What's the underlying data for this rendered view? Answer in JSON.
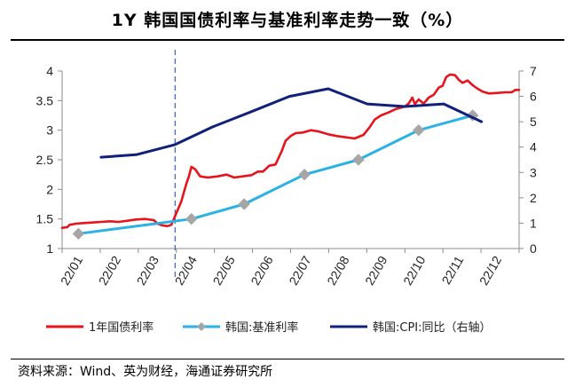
{
  "title": "1Y 韩国国债利率与基准利率走势一致（%）",
  "source": "资料来源：Wind、英为财经，海通证券研究所",
  "chart_data": {
    "type": "line",
    "title": "1Y 韩国国债利率与基准利率走势一致（%）",
    "x_ticks": [
      "22/01",
      "22/02",
      "22/03",
      "22/04",
      "22/05",
      "22/06",
      "22/07",
      "22/08",
      "22/09",
      "22/10",
      "22/11",
      "22/12"
    ],
    "x_range": [
      "2022-01-01",
      "2022-12-31"
    ],
    "y_left": {
      "min": 1,
      "max": 4,
      "ticks": [
        "1",
        "1.5",
        "2",
        "2.5",
        "3",
        "3.5",
        "4"
      ]
    },
    "y_right": {
      "min": 0,
      "max": 7,
      "ticks": [
        "0",
        "1",
        "2",
        "3",
        "4",
        "5",
        "6",
        "7"
      ]
    },
    "marker_line_date": "2022-04-01",
    "series": [
      {
        "name": "1年国债利率",
        "axis": "left",
        "color": "#e8131b",
        "points": [
          [
            "2022-01-01",
            1.35
          ],
          [
            "2022-01-05",
            1.36
          ],
          [
            "2022-01-07",
            1.4
          ],
          [
            "2022-01-12",
            1.42
          ],
          [
            "2022-01-18",
            1.43
          ],
          [
            "2022-01-25",
            1.44
          ],
          [
            "2022-02-01",
            1.45
          ],
          [
            "2022-02-08",
            1.46
          ],
          [
            "2022-02-15",
            1.45
          ],
          [
            "2022-02-22",
            1.47
          ],
          [
            "2022-03-01",
            1.49
          ],
          [
            "2022-03-08",
            1.5
          ],
          [
            "2022-03-15",
            1.48
          ],
          [
            "2022-03-18",
            1.42
          ],
          [
            "2022-03-22",
            1.39
          ],
          [
            "2022-03-26",
            1.38
          ],
          [
            "2022-03-29",
            1.4
          ],
          [
            "2022-03-31",
            1.5
          ],
          [
            "2022-04-03",
            1.65
          ],
          [
            "2022-04-06",
            1.8
          ],
          [
            "2022-04-08",
            1.95
          ],
          [
            "2022-04-10",
            2.1
          ],
          [
            "2022-04-12",
            2.22
          ],
          [
            "2022-04-14",
            2.38
          ],
          [
            "2022-04-17",
            2.34
          ],
          [
            "2022-04-21",
            2.22
          ],
          [
            "2022-04-27",
            2.2
          ],
          [
            "2022-05-05",
            2.22
          ],
          [
            "2022-05-12",
            2.25
          ],
          [
            "2022-05-18",
            2.2
          ],
          [
            "2022-05-25",
            2.22
          ],
          [
            "2022-06-01",
            2.24
          ],
          [
            "2022-06-06",
            2.3
          ],
          [
            "2022-06-10",
            2.3
          ],
          [
            "2022-06-15",
            2.4
          ],
          [
            "2022-06-20",
            2.42
          ],
          [
            "2022-06-25",
            2.65
          ],
          [
            "2022-06-28",
            2.82
          ],
          [
            "2022-07-02",
            2.9
          ],
          [
            "2022-07-06",
            2.95
          ],
          [
            "2022-07-12",
            2.96
          ],
          [
            "2022-07-18",
            3.0
          ],
          [
            "2022-07-24",
            2.98
          ],
          [
            "2022-08-01",
            2.93
          ],
          [
            "2022-08-08",
            2.9
          ],
          [
            "2022-08-15",
            2.88
          ],
          [
            "2022-08-22",
            2.86
          ],
          [
            "2022-08-29",
            2.92
          ],
          [
            "2022-09-03",
            3.05
          ],
          [
            "2022-09-07",
            3.18
          ],
          [
            "2022-09-12",
            3.25
          ],
          [
            "2022-09-18",
            3.3
          ],
          [
            "2022-09-24",
            3.36
          ],
          [
            "2022-09-28",
            3.38
          ],
          [
            "2022-10-01",
            3.4
          ],
          [
            "2022-10-04",
            3.45
          ],
          [
            "2022-10-07",
            3.55
          ],
          [
            "2022-10-09",
            3.44
          ],
          [
            "2022-10-12",
            3.52
          ],
          [
            "2022-10-16",
            3.45
          ],
          [
            "2022-10-20",
            3.55
          ],
          [
            "2022-10-24",
            3.6
          ],
          [
            "2022-10-28",
            3.72
          ],
          [
            "2022-10-31",
            3.75
          ],
          [
            "2022-11-03",
            3.9
          ],
          [
            "2022-11-06",
            3.94
          ],
          [
            "2022-11-10",
            3.93
          ],
          [
            "2022-11-13",
            3.85
          ],
          [
            "2022-11-16",
            3.8
          ],
          [
            "2022-11-20",
            3.84
          ],
          [
            "2022-11-24",
            3.76
          ],
          [
            "2022-11-28",
            3.7
          ],
          [
            "2022-12-02",
            3.65
          ],
          [
            "2022-12-07",
            3.62
          ],
          [
            "2022-12-14",
            3.63
          ],
          [
            "2022-12-20",
            3.64
          ],
          [
            "2022-12-25",
            3.64
          ],
          [
            "2022-12-28",
            3.68
          ],
          [
            "2022-12-31",
            3.68
          ]
        ]
      },
      {
        "name": "韩国:基准利率",
        "axis": "left",
        "color": "#2ab2e6",
        "marker": "diamond",
        "points": [
          [
            "2022-01-14",
            1.25
          ],
          [
            "2022-04-14",
            1.5
          ],
          [
            "2022-05-26",
            1.75
          ],
          [
            "2022-07-13",
            2.25
          ],
          [
            "2022-08-25",
            2.5
          ],
          [
            "2022-10-12",
            3.0
          ],
          [
            "2022-11-24",
            3.25
          ]
        ]
      },
      {
        "name": "韩国:CPI:同比（右轴）",
        "axis": "right",
        "color": "#11207a",
        "points": [
          [
            "2022-02-01",
            3.6
          ],
          [
            "2022-03-01",
            3.7
          ],
          [
            "2022-04-01",
            4.1
          ],
          [
            "2022-05-01",
            4.8
          ],
          [
            "2022-06-01",
            5.4
          ],
          [
            "2022-07-01",
            6.0
          ],
          [
            "2022-08-01",
            6.3
          ],
          [
            "2022-09-01",
            5.7
          ],
          [
            "2022-10-01",
            5.6
          ],
          [
            "2022-11-01",
            5.7
          ],
          [
            "2022-12-01",
            5.0
          ]
        ]
      }
    ]
  }
}
